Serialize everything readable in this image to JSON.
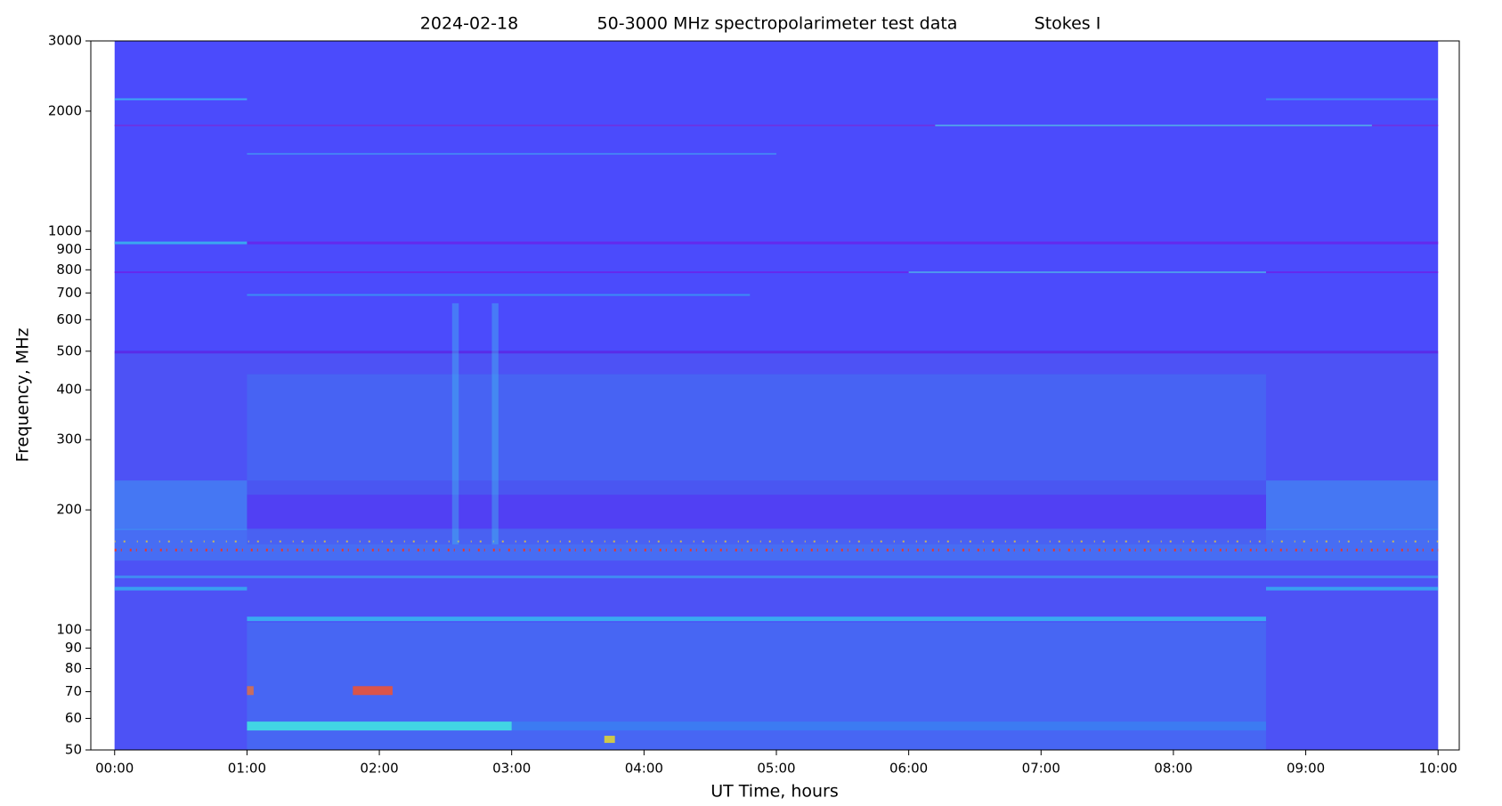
{
  "chart_data": {
    "type": "heatmap",
    "title": [
      "2024-02-18",
      "50-3000 MHz spectropolarimeter test data",
      "Stokes I"
    ],
    "xlabel": "UT Time, hours",
    "ylabel": "Frequency, MHz",
    "color": "#4b4bfc",
    "xlim": [
      -0.18,
      10.16
    ],
    "xticks": [
      {
        "value": 0,
        "label": "00:00"
      },
      {
        "value": 1,
        "label": "01:00"
      },
      {
        "value": 2,
        "label": "02:00"
      },
      {
        "value": 3,
        "label": "03:00"
      },
      {
        "value": 4,
        "label": "04:00"
      },
      {
        "value": 5,
        "label": "05:00"
      },
      {
        "value": 6,
        "label": "06:00"
      },
      {
        "value": 7,
        "label": "07:00"
      },
      {
        "value": 8,
        "label": "08:00"
      },
      {
        "value": 9,
        "label": "09:00"
      },
      {
        "value": 10,
        "label": "10:00"
      }
    ],
    "ylim": [
      50,
      3000
    ],
    "yscale": "log",
    "yticks": [
      50,
      60,
      70,
      80,
      90,
      100,
      200,
      300,
      400,
      500,
      600,
      700,
      800,
      900,
      1000,
      2000,
      3000
    ],
    "grid": false
  }
}
